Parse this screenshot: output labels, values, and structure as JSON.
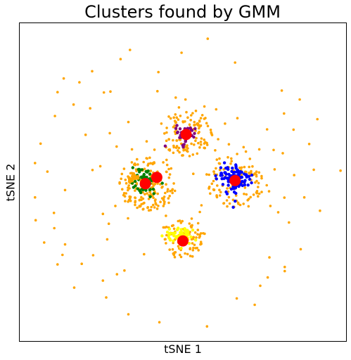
{
  "chart_data": {
    "type": "scatter",
    "title": "Clusters found by GMM",
    "xlabel": "tSNE 1",
    "ylabel": "tSNE 2",
    "xlim": [
      0,
      100
    ],
    "ylim": [
      0,
      100
    ],
    "xticks": false,
    "yticks": false,
    "grid": false,
    "colors": {
      "orange": "#ffa500",
      "purple": "#800080",
      "green": "#008000",
      "blue": "#0000ff",
      "yellow": "#ffff00",
      "centroid": "#ff0000"
    },
    "clusters": [
      {
        "color": "#800080",
        "center": [
          51.0,
          65.0
        ],
        "spread": [
          1.5,
          1.5
        ],
        "n": 45
      },
      {
        "color": "#008000",
        "center": [
          38.0,
          50.0
        ],
        "spread": [
          1.8,
          2.0
        ],
        "n": 70
      },
      {
        "color": "#0000ff",
        "center": [
          66.0,
          51.0
        ],
        "spread": [
          2.5,
          2.2
        ],
        "n": 110
      },
      {
        "color": "#ffff00",
        "center": [
          49.0,
          33.0
        ],
        "spread": [
          2.2,
          1.6
        ],
        "n": 60
      },
      {
        "color": "#ffa500",
        "center": [
          35.0,
          51.5
        ],
        "spread": [
          1.0,
          0.6
        ],
        "n": 25
      },
      {
        "color": "#ffa500",
        "center": [
          54.5,
          68.0
        ],
        "spread": [
          0.6,
          0.3
        ],
        "n": 6
      }
    ],
    "halos": [
      {
        "color": "#ffa500",
        "center": [
          51.0,
          65.5
        ],
        "radius": 8.0,
        "n": 110
      },
      {
        "color": "#ffa500",
        "center": [
          39.0,
          49.5
        ],
        "radius": 9.0,
        "n": 170
      },
      {
        "color": "#ffa500",
        "center": [
          66.0,
          50.5
        ],
        "radius": 9.0,
        "n": 110
      },
      {
        "color": "#ffa500",
        "center": [
          50.0,
          32.5
        ],
        "radius": 7.0,
        "n": 90
      }
    ],
    "scattered_points": [
      [
        33.8,
        91.6
      ],
      [
        57.6,
        95.1
      ],
      [
        66.0,
        87.6
      ],
      [
        49.6,
        90.7
      ],
      [
        42.5,
        84.6
      ],
      [
        22.2,
        84.9
      ],
      [
        18.3,
        81.4
      ],
      [
        13.5,
        82.6
      ],
      [
        30.9,
        88.7
      ],
      [
        25.8,
        78.2
      ],
      [
        11.6,
        78.3
      ],
      [
        16.5,
        74.4
      ],
      [
        21.6,
        73.2
      ],
      [
        27.8,
        78.5
      ],
      [
        42.2,
        78.6
      ],
      [
        48.8,
        73.5
      ],
      [
        33.3,
        68.9
      ],
      [
        27.6,
        65.4
      ],
      [
        20.2,
        64.9
      ],
      [
        10.8,
        70.8
      ],
      [
        6.4,
        62.1
      ],
      [
        8.5,
        53.3
      ],
      [
        4.7,
        56.0
      ],
      [
        4.7,
        45.2
      ],
      [
        13.9,
        47.5
      ],
      [
        10.5,
        40.3
      ],
      [
        4.9,
        38.0
      ],
      [
        10.6,
        35.5
      ],
      [
        7.5,
        31.0
      ],
      [
        13.9,
        30.4
      ],
      [
        19.0,
        24.3
      ],
      [
        13.1,
        27.1
      ],
      [
        11.6,
        24.1
      ],
      [
        16.7,
        16.8
      ],
      [
        25.5,
        19.0
      ],
      [
        22.5,
        27.0
      ],
      [
        26.8,
        32.0
      ],
      [
        38.1,
        27.3
      ],
      [
        32.1,
        22.2
      ],
      [
        29.8,
        21.0
      ],
      [
        26.5,
        13.7
      ],
      [
        33.3,
        8.4
      ],
      [
        42.8,
        5.9
      ],
      [
        57.4,
        4.6
      ],
      [
        66.5,
        13.4
      ],
      [
        72.0,
        11.4
      ],
      [
        73.7,
        17.4
      ],
      [
        76.0,
        20.0
      ],
      [
        76.5,
        26.3
      ],
      [
        81.2,
        23.3
      ],
      [
        81.2,
        22.0
      ],
      [
        86.1,
        28.9
      ],
      [
        82.5,
        37.3
      ],
      [
        79.2,
        40.5
      ],
      [
        76.8,
        42.5
      ],
      [
        81.1,
        45.1
      ],
      [
        84.1,
        52.2
      ],
      [
        87.2,
        45.2
      ],
      [
        92.0,
        41.0
      ],
      [
        98.3,
        53.6
      ],
      [
        90.1,
        53.9
      ],
      [
        80.6,
        59.1
      ],
      [
        88.7,
        62.0
      ],
      [
        77.8,
        60.1
      ],
      [
        81.0,
        71.6
      ],
      [
        83.9,
        66.5
      ],
      [
        78.1,
        54.0
      ],
      [
        75.7,
        49.0
      ],
      [
        76.4,
        47.1
      ],
      [
        70.1,
        42.4
      ],
      [
        68.6,
        61.0
      ],
      [
        63.8,
        57.8
      ],
      [
        73.4,
        60.3
      ],
      [
        64.1,
        61.9
      ],
      [
        75.8,
        66.6
      ],
      [
        85.8,
        76.0
      ],
      [
        91.2,
        69.8
      ],
      [
        80.3,
        78.8
      ],
      [
        59.9,
        60.0
      ],
      [
        61.2,
        57.4
      ],
      [
        58.9,
        49.5
      ],
      [
        53.2,
        52.6
      ],
      [
        46.4,
        54.3
      ],
      [
        41.3,
        60.2
      ],
      [
        34.4,
        60.3
      ],
      [
        29.7,
        61.2
      ],
      [
        24.7,
        55.0
      ],
      [
        22.3,
        53.8
      ],
      [
        29.3,
        42.5
      ],
      [
        25.5,
        40.0
      ],
      [
        27.3,
        36.9
      ],
      [
        33.2,
        38.6
      ],
      [
        44.8,
        39.4
      ],
      [
        45.7,
        43.5
      ],
      [
        55.2,
        40.6
      ],
      [
        55.7,
        42.7
      ],
      [
        38.9,
        62.8
      ],
      [
        45.0,
        57.0
      ],
      [
        56.6,
        73.8
      ],
      [
        60.2,
        72.9
      ],
      [
        50.8,
        76.0
      ],
      [
        47.8,
        76.6
      ],
      [
        43.4,
        68.4
      ],
      [
        45.7,
        60.2
      ],
      [
        60.8,
        63.5
      ],
      [
        62.9,
        68.4
      ],
      [
        66.7,
        70.1
      ],
      [
        69.3,
        59.6
      ]
    ],
    "centroids": [
      [
        51.0,
        65.0
      ],
      [
        38.5,
        49.5
      ],
      [
        42.0,
        51.5
      ],
      [
        66.0,
        50.5
      ],
      [
        50.0,
        31.5
      ]
    ]
  }
}
